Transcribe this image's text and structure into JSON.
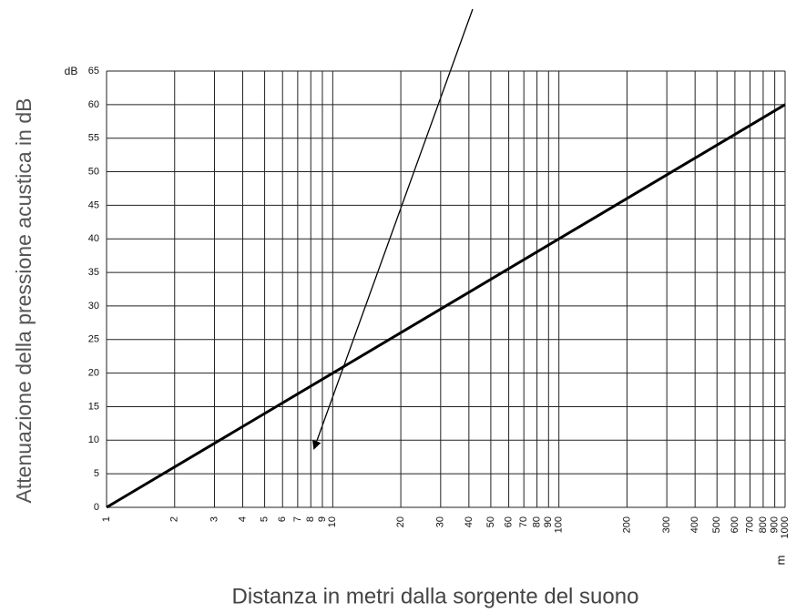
{
  "chart_data": {
    "type": "line",
    "x_label": "Distanza in metri dalla sorgente del suono",
    "y_label": "Attenuazione della pressione acustica in dB",
    "y_unit": "dB",
    "x_unit": "m",
    "x": [
      1,
      1000
    ],
    "series": [
      {
        "color": "#000000",
        "values": [
          0,
          60
        ]
      }
    ],
    "xscale": "log",
    "xlim": [
      1,
      1000
    ],
    "xticks": [
      1,
      2,
      3,
      4,
      5,
      6,
      7,
      8,
      9,
      10,
      20,
      30,
      40,
      50,
      60,
      70,
      80,
      90,
      100,
      200,
      300,
      400,
      500,
      600,
      700,
      800,
      900,
      1000
    ],
    "ylim": [
      0,
      65
    ],
    "yticks": [
      0,
      5,
      10,
      15,
      20,
      25,
      30,
      35,
      40,
      45,
      50,
      55,
      60,
      65
    ],
    "grid": true
  }
}
